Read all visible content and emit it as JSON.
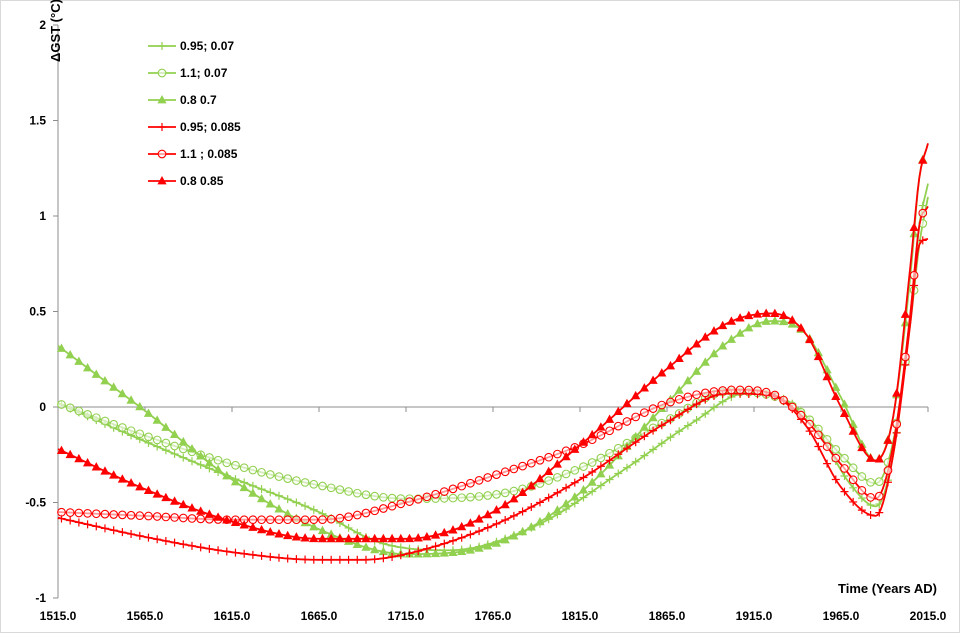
{
  "chart_data": {
    "type": "line",
    "title": "",
    "xlabel": "Time (Years AD)",
    "ylabel": "ΔGST (°C)",
    "xlim": [
      1515,
      2015
    ],
    "ylim": [
      -1,
      2
    ],
    "x_ticks": [
      "1515.0",
      "1565.0",
      "1615.0",
      "1665.0",
      "1715.0",
      "1765.0",
      "1815.0",
      "1865.0",
      "1915.0",
      "1965.0",
      "2015.0"
    ],
    "y_ticks": [
      "-1",
      "-0.5",
      "0",
      "0.5",
      "1",
      "1.5",
      "2"
    ],
    "grid": false,
    "legend_position": "top-left",
    "colors": {
      "green": "#92d050",
      "red": "#ff0000"
    },
    "series": [
      {
        "name": "0.95; 0.07",
        "color": "#92d050",
        "marker": "plus",
        "x": [
          1515,
          1565,
          1615,
          1665,
          1700,
          1740,
          1790,
          1840,
          1880,
          1910,
          1930,
          1950,
          1970,
          1985,
          1995,
          2005,
          2010,
          2015
        ],
        "y": [
          0.02,
          -0.18,
          -0.37,
          -0.55,
          -0.71,
          -0.75,
          -0.62,
          -0.33,
          -0.08,
          0.07,
          0.05,
          -0.1,
          -0.4,
          -0.52,
          -0.25,
          0.5,
          0.95,
          1.17
        ]
      },
      {
        "name": "1.1; 0.07",
        "color": "#92d050",
        "marker": "circle",
        "x": [
          1515,
          1565,
          1615,
          1665,
          1715,
          1765,
          1815,
          1865,
          1900,
          1925,
          1945,
          1965,
          1985,
          1995,
          2005,
          2010,
          2015
        ],
        "y": [
          0.02,
          -0.15,
          -0.3,
          -0.41,
          -0.48,
          -0.46,
          -0.32,
          -0.07,
          0.08,
          0.06,
          -0.05,
          -0.25,
          -0.4,
          -0.18,
          0.45,
          0.85,
          1.1
        ]
      },
      {
        "name": "0.8 0.7",
        "color": "#92d050",
        "marker": "triangle",
        "x": [
          1515,
          1540,
          1565,
          1615,
          1665,
          1715,
          1765,
          1815,
          1865,
          1900,
          1925,
          1945,
          1965,
          1985,
          1995,
          2005,
          2010,
          2015
        ],
        "y": [
          0.32,
          0.15,
          -0.02,
          -0.38,
          -0.64,
          -0.77,
          -0.72,
          -0.45,
          0.02,
          0.34,
          0.45,
          0.38,
          0.05,
          -0.28,
          -0.05,
          0.7,
          1.2,
          1.38
        ]
      },
      {
        "name": "0.95; 0.085",
        "color": "#ff0000",
        "marker": "plus",
        "x": [
          1515,
          1565,
          1615,
          1665,
          1690,
          1715,
          1765,
          1815,
          1865,
          1900,
          1925,
          1945,
          1965,
          1985,
          1995,
          2005,
          2010,
          2015
        ],
        "y": [
          -0.58,
          -0.68,
          -0.76,
          -0.8,
          -0.8,
          -0.77,
          -0.62,
          -0.38,
          -0.08,
          0.07,
          0.06,
          -0.1,
          -0.42,
          -0.57,
          -0.25,
          0.45,
          0.85,
          0.88
        ]
      },
      {
        "name": "1.1 ; 0.085",
        "color": "#ff0000",
        "marker": "circle",
        "x": [
          1515,
          1565,
          1615,
          1665,
          1715,
          1765,
          1815,
          1865,
          1905,
          1925,
          1945,
          1965,
          1985,
          1995,
          2005,
          2010,
          2015
        ],
        "y": [
          -0.55,
          -0.57,
          -0.59,
          -0.59,
          -0.5,
          -0.36,
          -0.2,
          0.02,
          0.09,
          0.07,
          -0.07,
          -0.3,
          -0.48,
          -0.2,
          0.5,
          0.95,
          1.05
        ]
      },
      {
        "name": "0.8 0.85",
        "color": "#ff0000",
        "marker": "triangle",
        "x": [
          1515,
          1565,
          1615,
          1665,
          1715,
          1765,
          1815,
          1865,
          1900,
          1925,
          1945,
          1965,
          1985,
          1995,
          2005,
          2010,
          2015
        ],
        "y": [
          -0.22,
          -0.43,
          -0.6,
          -0.69,
          -0.69,
          -0.55,
          -0.2,
          0.2,
          0.44,
          0.49,
          0.38,
          0.0,
          -0.28,
          -0.05,
          0.75,
          1.2,
          1.38
        ]
      }
    ]
  }
}
